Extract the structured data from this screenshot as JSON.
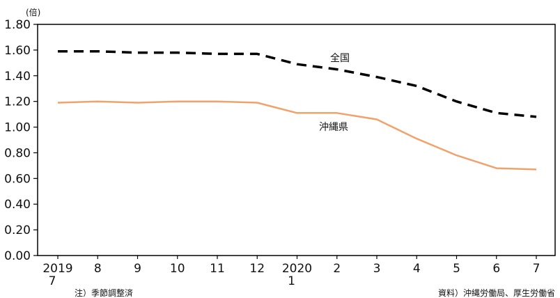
{
  "chart_data": {
    "type": "line",
    "unit": "(倍)",
    "x": [
      "2019\n7",
      "8",
      "9",
      "10",
      "11",
      "12",
      "2020\n1",
      "2",
      "3",
      "4",
      "5",
      "6",
      "7"
    ],
    "x_ticks": [
      {
        "line1": "2019",
        "line2": "7"
      },
      {
        "line1": "8",
        "line2": ""
      },
      {
        "line1": "9",
        "line2": ""
      },
      {
        "line1": "10",
        "line2": ""
      },
      {
        "line1": "11",
        "line2": ""
      },
      {
        "line1": "12",
        "line2": ""
      },
      {
        "line1": "2020",
        "line2": "1"
      },
      {
        "line1": "2",
        "line2": ""
      },
      {
        "line1": "3",
        "line2": ""
      },
      {
        "line1": "4",
        "line2": ""
      },
      {
        "line1": "5",
        "line2": ""
      },
      {
        "line1": "6",
        "line2": ""
      },
      {
        "line1": "7",
        "line2": ""
      }
    ],
    "ylim": [
      0,
      1.8
    ],
    "y_ticks": [
      "0.00",
      "0.20",
      "0.40",
      "0.60",
      "0.80",
      "1.00",
      "1.20",
      "1.40",
      "1.60",
      "1.80"
    ],
    "series": [
      {
        "name": "全国",
        "color": "#000000",
        "style": "dashed",
        "values": [
          1.59,
          1.59,
          1.58,
          1.58,
          1.57,
          1.57,
          1.49,
          1.45,
          1.39,
          1.32,
          1.2,
          1.11,
          1.08
        ]
      },
      {
        "name": "沖縄県",
        "color": "#f0a26a",
        "style": "solid",
        "values": [
          1.19,
          1.2,
          1.19,
          1.2,
          1.2,
          1.19,
          1.11,
          1.11,
          1.06,
          0.91,
          0.78,
          0.68,
          0.67
        ]
      }
    ],
    "note": "注）季節調整済",
    "source": "資料）沖縄労働局、厚生労働省",
    "grid": false,
    "legend": "inline labels"
  }
}
